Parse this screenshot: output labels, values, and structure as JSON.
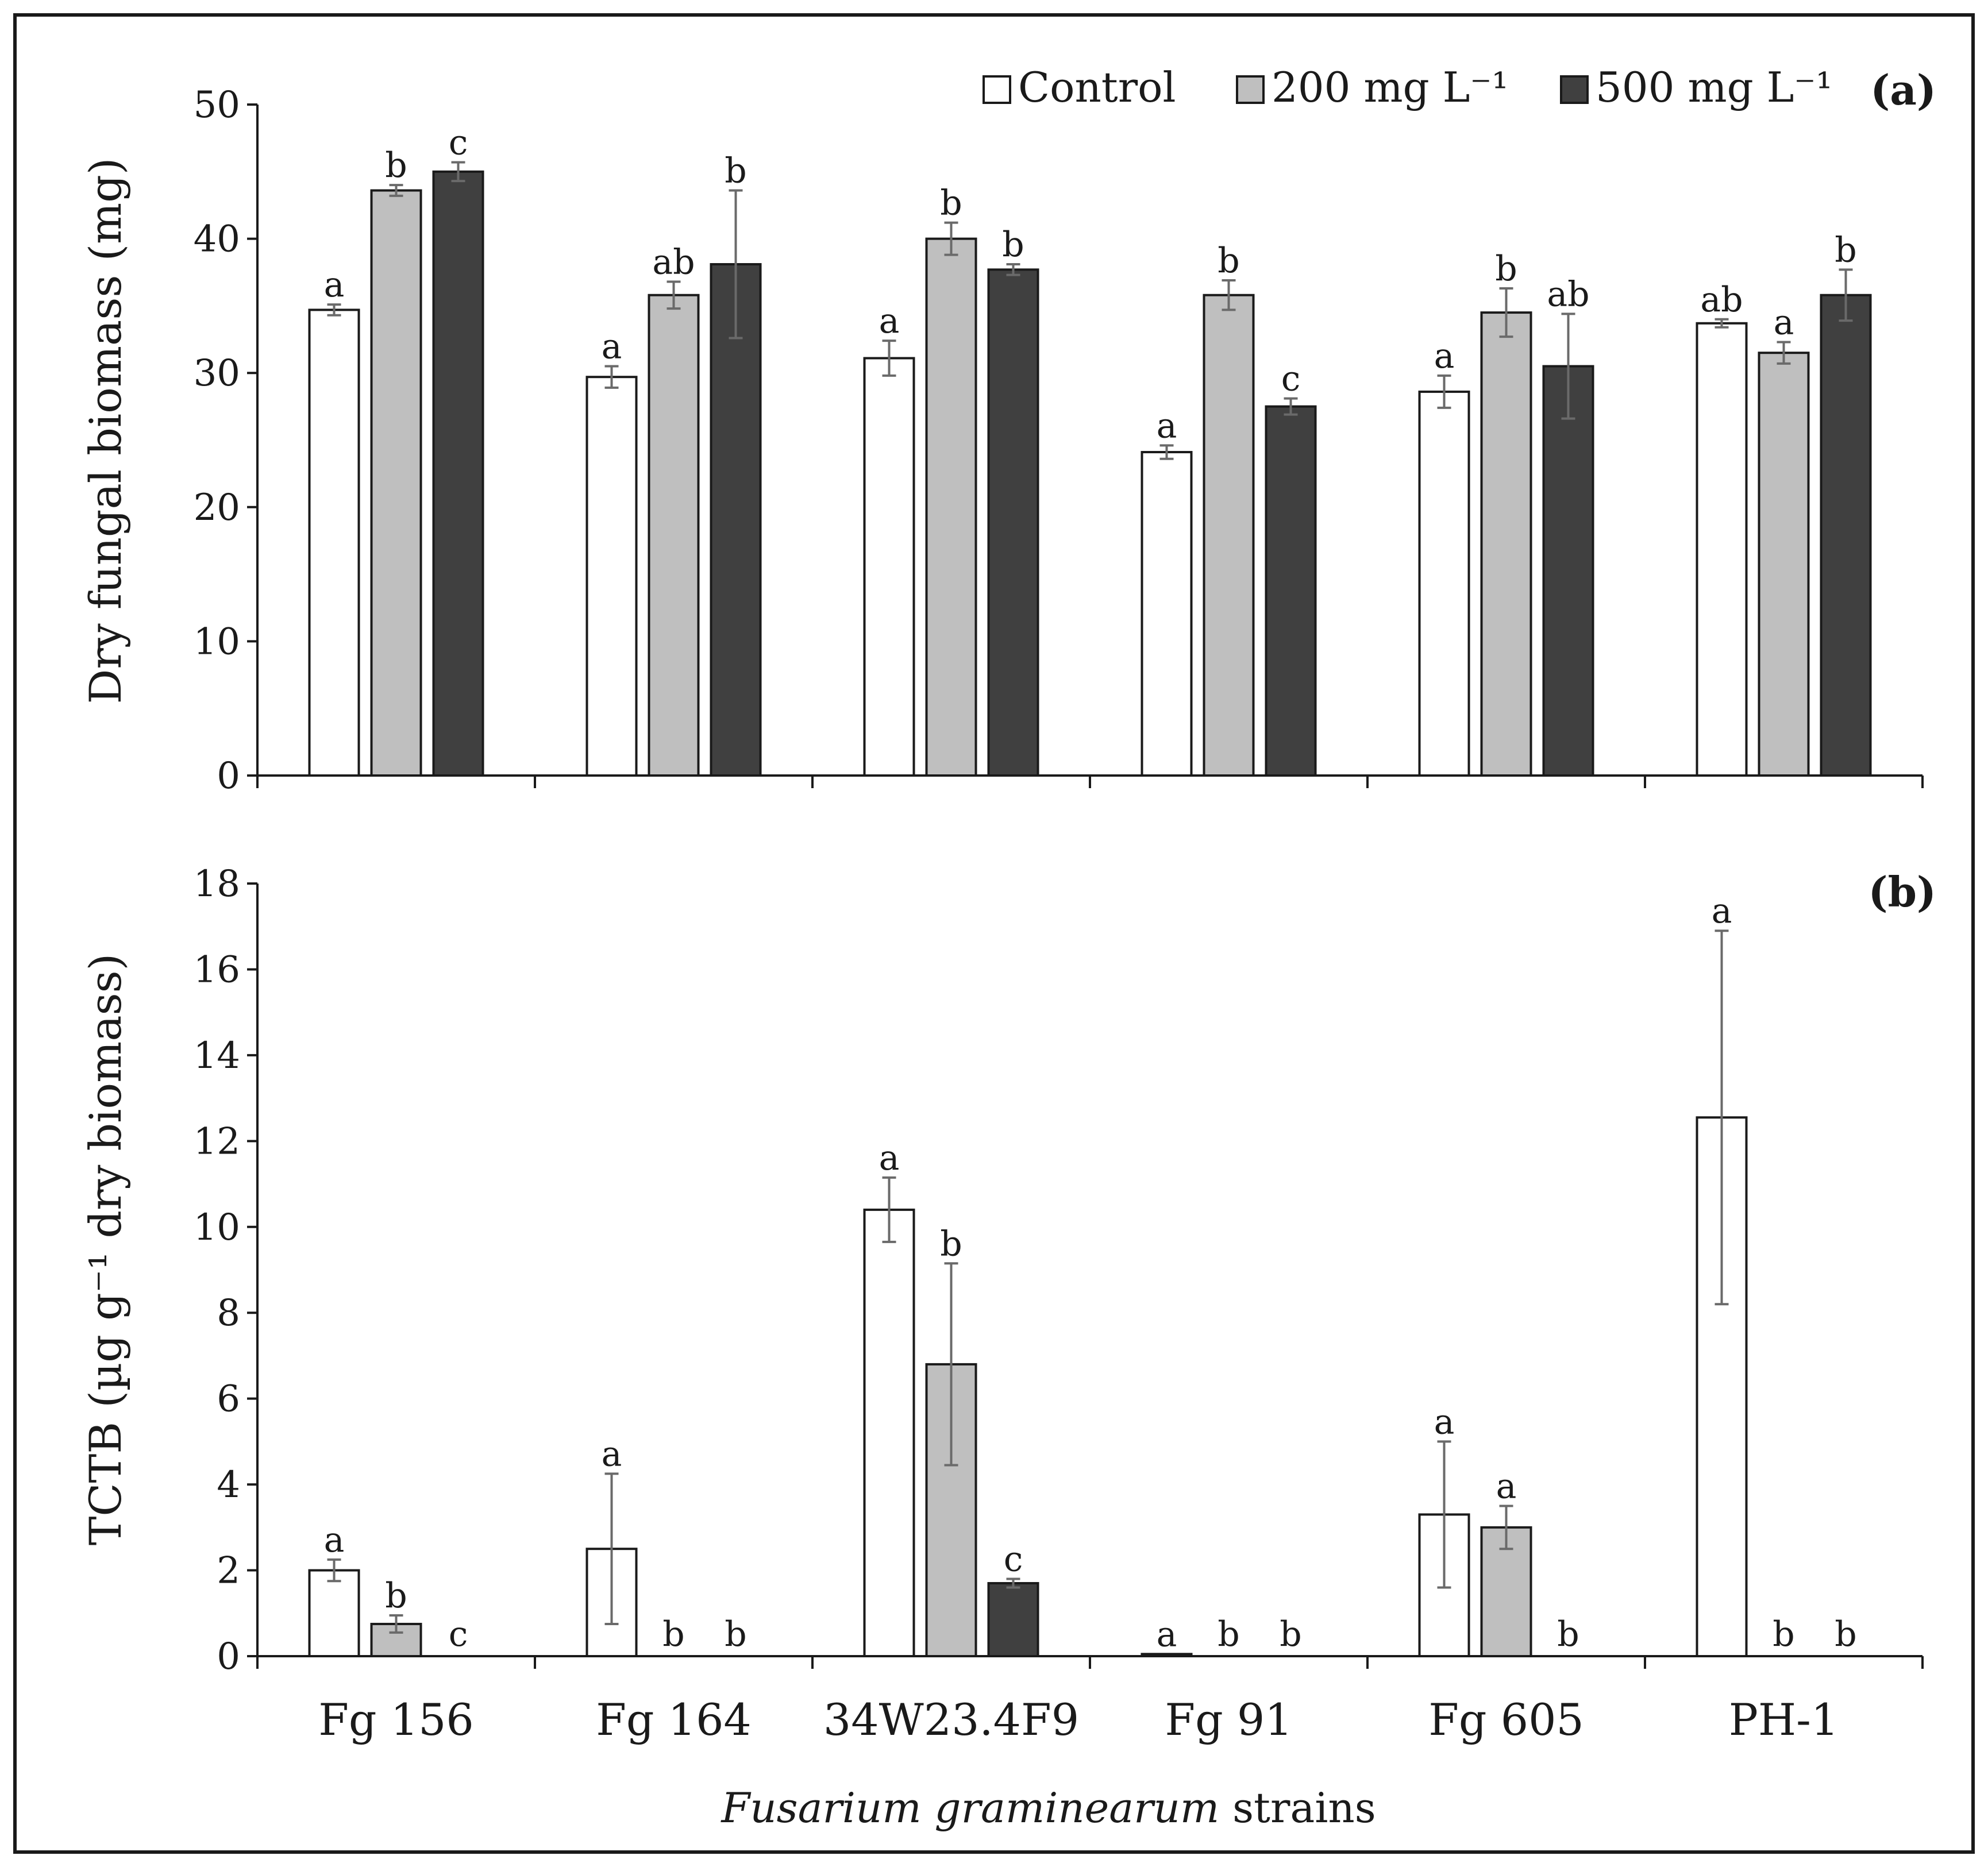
{
  "chart_data": [
    {
      "type": "bar",
      "panel_label": "(a)",
      "ylabel": "Dry fungal biomass (mg)",
      "ylim": [
        0,
        50
      ],
      "yticks": [
        0,
        10,
        20,
        30,
        40,
        50
      ],
      "categories": [
        "Fg 156",
        "Fg 164",
        "34W23.4F9",
        "Fg 91",
        "Fg 605",
        "PH-1"
      ],
      "series": [
        {
          "name": "Control",
          "color": "#ffffff",
          "values": [
            34.7,
            29.7,
            31.1,
            24.1,
            28.6,
            33.7
          ],
          "errors": [
            0.4,
            0.8,
            1.3,
            0.5,
            1.2,
            0.3
          ],
          "letters": [
            "a",
            "a",
            "a",
            "a",
            "a",
            "ab"
          ]
        },
        {
          "name": "200 mg L⁻¹",
          "color": "#bfbfbf",
          "values": [
            43.6,
            35.8,
            40.0,
            35.8,
            34.5,
            31.5
          ],
          "errors": [
            0.4,
            1.0,
            1.2,
            1.1,
            1.8,
            0.8
          ],
          "letters": [
            "b",
            "ab",
            "b",
            "b",
            "b",
            "a"
          ]
        },
        {
          "name": "500 mg L⁻¹",
          "color": "#404040",
          "values": [
            45.0,
            38.1,
            37.7,
            27.5,
            30.5,
            35.8
          ],
          "errors": [
            0.7,
            5.5,
            0.4,
            0.6,
            3.9,
            1.9
          ],
          "letters": [
            "c",
            "b",
            "b",
            "c",
            "ab",
            "b"
          ]
        }
      ]
    },
    {
      "type": "bar",
      "panel_label": "(b)",
      "ylabel": "TCTB (µg g⁻¹ dry biomass)",
      "ylim": [
        0,
        18
      ],
      "yticks": [
        0,
        2,
        4,
        6,
        8,
        10,
        12,
        14,
        16,
        18
      ],
      "categories": [
        "Fg 156",
        "Fg 164",
        "34W23.4F9",
        "Fg 91",
        "Fg 605",
        "PH-1"
      ],
      "series": [
        {
          "name": "Control",
          "color": "#ffffff",
          "values": [
            2.0,
            2.5,
            10.4,
            0.05,
            3.3,
            12.55
          ],
          "errors": [
            0.25,
            1.75,
            0.75,
            0.0,
            1.7,
            4.35
          ],
          "letters": [
            "a",
            "a",
            "a",
            "a",
            "a",
            "a"
          ]
        },
        {
          "name": "200 mg L⁻¹",
          "color": "#bfbfbf",
          "values": [
            0.75,
            0.0,
            6.8,
            0.0,
            3.0,
            0.0
          ],
          "errors": [
            0.2,
            0.0,
            2.35,
            0.0,
            0.5,
            0.0
          ],
          "letters": [
            "b",
            "b",
            "b",
            "b",
            "a",
            "b"
          ]
        },
        {
          "name": "500 mg L⁻¹",
          "color": "#404040",
          "values": [
            0.0,
            0.0,
            1.7,
            0.0,
            0.0,
            0.0
          ],
          "errors": [
            0.0,
            0.0,
            0.1,
            0.0,
            0.0,
            0.0
          ],
          "letters": [
            "c",
            "b",
            "c",
            "b",
            "b",
            "b"
          ]
        }
      ]
    }
  ],
  "legend": {
    "items": [
      {
        "label": "Control",
        "color": "#ffffff"
      },
      {
        "label": "200 mg L⁻¹",
        "color": "#bfbfbf"
      },
      {
        "label": "500 mg L⁻¹",
        "color": "#404040"
      }
    ],
    "placement": "top-right"
  },
  "xaxis": {
    "title_italic": "Fusarium graminearum",
    "title_rest": " strains"
  }
}
